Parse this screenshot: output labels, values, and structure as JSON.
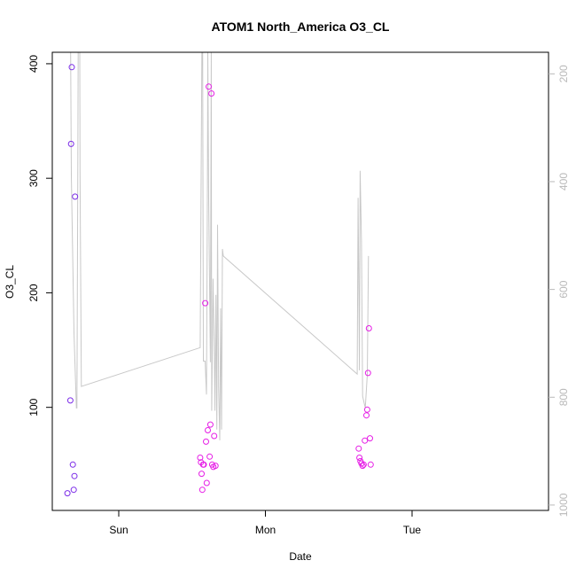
{
  "chart_data": {
    "type": "scatter",
    "title": "ATOM1 North_America O3_CL",
    "xlabel": "Date",
    "ylabel": "O3_CL",
    "x_ticks": [
      "Sun",
      "Mon",
      "Tue"
    ],
    "y_ticks": [
      100,
      200,
      300,
      400
    ],
    "ylim": [
      10,
      410
    ],
    "y_right_ticks": [
      200,
      400,
      600,
      800,
      1000
    ],
    "y_right_range": [
      1010,
      160
    ],
    "grid": false,
    "colors": {
      "line": "#c8c8c8",
      "axis": "#000000",
      "right_axis": "#b9b9b9"
    },
    "line_series": {
      "axis": "right",
      "points": [
        [
          -0.328,
          160
        ],
        [
          -0.323,
          388
        ],
        [
          -0.305,
          680
        ],
        [
          -0.289,
          820
        ],
        [
          -0.285,
          820
        ],
        [
          -0.28,
          420
        ],
        [
          -0.277,
          160
        ],
        [
          -0.266,
          160
        ],
        [
          -0.264,
          380
        ],
        [
          -0.255,
          780
        ],
        [
          0.555,
          708
        ],
        [
          0.567,
          160
        ],
        [
          0.572,
          160
        ],
        [
          0.577,
          733
        ],
        [
          0.589,
          733
        ],
        [
          0.598,
          795
        ],
        [
          0.605,
          400
        ],
        [
          0.607,
          160
        ],
        [
          0.613,
          430
        ],
        [
          0.625,
          735
        ],
        [
          0.631,
          160
        ],
        [
          0.634,
          825
        ],
        [
          0.643,
          580
        ],
        [
          0.651,
          700
        ],
        [
          0.656,
          825
        ],
        [
          0.663,
          610
        ],
        [
          0.669,
          860
        ],
        [
          0.674,
          480
        ],
        [
          0.681,
          780
        ],
        [
          0.689,
          880
        ],
        [
          0.695,
          635
        ],
        [
          0.701,
          860
        ],
        [
          0.707,
          525
        ],
        [
          0.713,
          538
        ],
        [
          1.626,
          757
        ],
        [
          1.632,
          430
        ],
        [
          1.641,
          750
        ],
        [
          1.646,
          380
        ],
        [
          1.655,
          510
        ],
        [
          1.663,
          798
        ],
        [
          1.681,
          820
        ],
        [
          1.695,
          758
        ],
        [
          1.703,
          538
        ]
      ]
    },
    "scatter_series": [
      {
        "color": "#7b2be8",
        "points": [
          [
            -0.33,
            106
          ],
          [
            -0.325,
            330
          ],
          [
            -0.32,
            397
          ],
          [
            -0.313,
            50
          ],
          [
            -0.307,
            28
          ],
          [
            -0.302,
            40
          ],
          [
            -0.298,
            284
          ],
          [
            -0.35,
            25
          ]
        ]
      },
      {
        "color": "#e61ee6",
        "points": [
          [
            0.555,
            56
          ],
          [
            0.561,
            52
          ],
          [
            0.565,
            42
          ],
          [
            0.57,
            28
          ],
          [
            0.575,
            50
          ],
          [
            0.58,
            50
          ],
          [
            0.59,
            191
          ],
          [
            0.595,
            70
          ],
          [
            0.6,
            34
          ],
          [
            0.607,
            80
          ],
          [
            0.613,
            380
          ],
          [
            0.62,
            57
          ],
          [
            0.625,
            85
          ],
          [
            0.632,
            374
          ],
          [
            0.637,
            50
          ],
          [
            0.645,
            48
          ],
          [
            0.651,
            75
          ],
          [
            0.66,
            49
          ],
          [
            1.636,
            64
          ],
          [
            1.641,
            56
          ],
          [
            1.648,
            53
          ],
          [
            1.655,
            51
          ],
          [
            1.663,
            49
          ],
          [
            1.67,
            50
          ],
          [
            1.678,
            71
          ],
          [
            1.689,
            93
          ],
          [
            1.694,
            98
          ],
          [
            1.7,
            130
          ],
          [
            1.706,
            169
          ],
          [
            1.713,
            73
          ],
          [
            1.718,
            50
          ]
        ]
      }
    ]
  }
}
